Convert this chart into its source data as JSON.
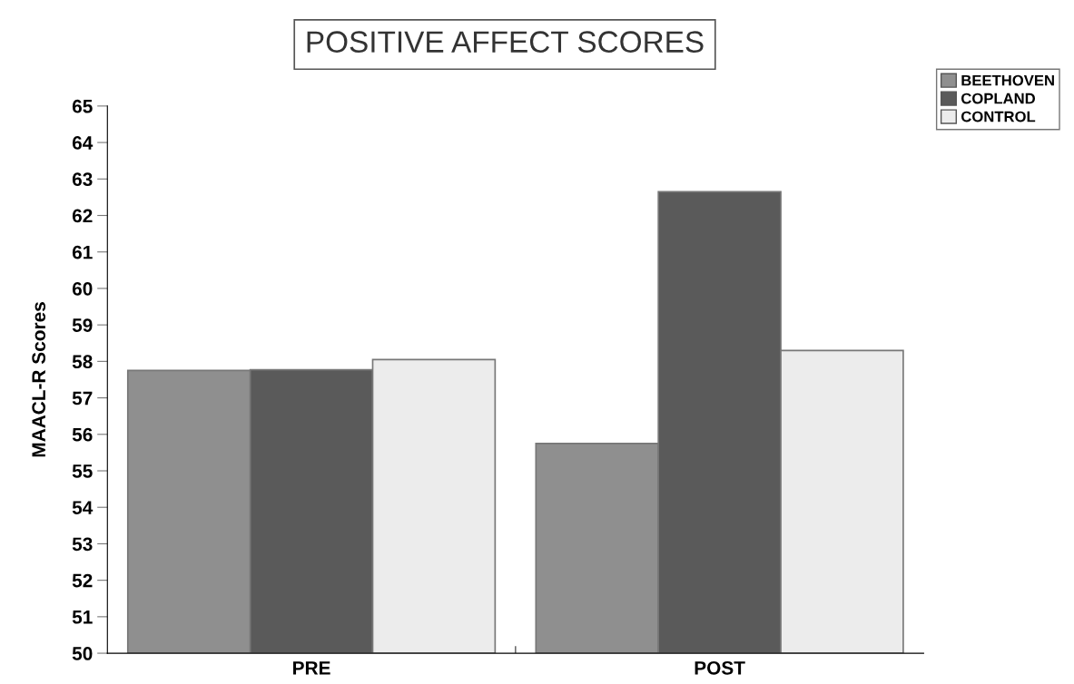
{
  "chart_data": {
    "type": "bar",
    "title": "POSITIVE AFFECT SCORES",
    "ylabel": "MAACL-R Scores",
    "categories": [
      "PRE",
      "POST"
    ],
    "series": [
      {
        "name": "BEETHOVEN",
        "color": "#8f8f8f",
        "values": [
          57.75,
          55.75
        ]
      },
      {
        "name": "COPLAND",
        "color": "#5a5a5a",
        "values": [
          57.77,
          62.65
        ]
      },
      {
        "name": "CONTROL",
        "color": "#ececec",
        "values": [
          58.05,
          58.3
        ]
      }
    ],
    "ylim": [
      50,
      65
    ],
    "yticks": [
      50,
      51,
      52,
      53,
      54,
      55,
      56,
      57,
      58,
      59,
      60,
      61,
      62,
      63,
      64,
      65
    ],
    "grid": false,
    "legend": "top right"
  }
}
